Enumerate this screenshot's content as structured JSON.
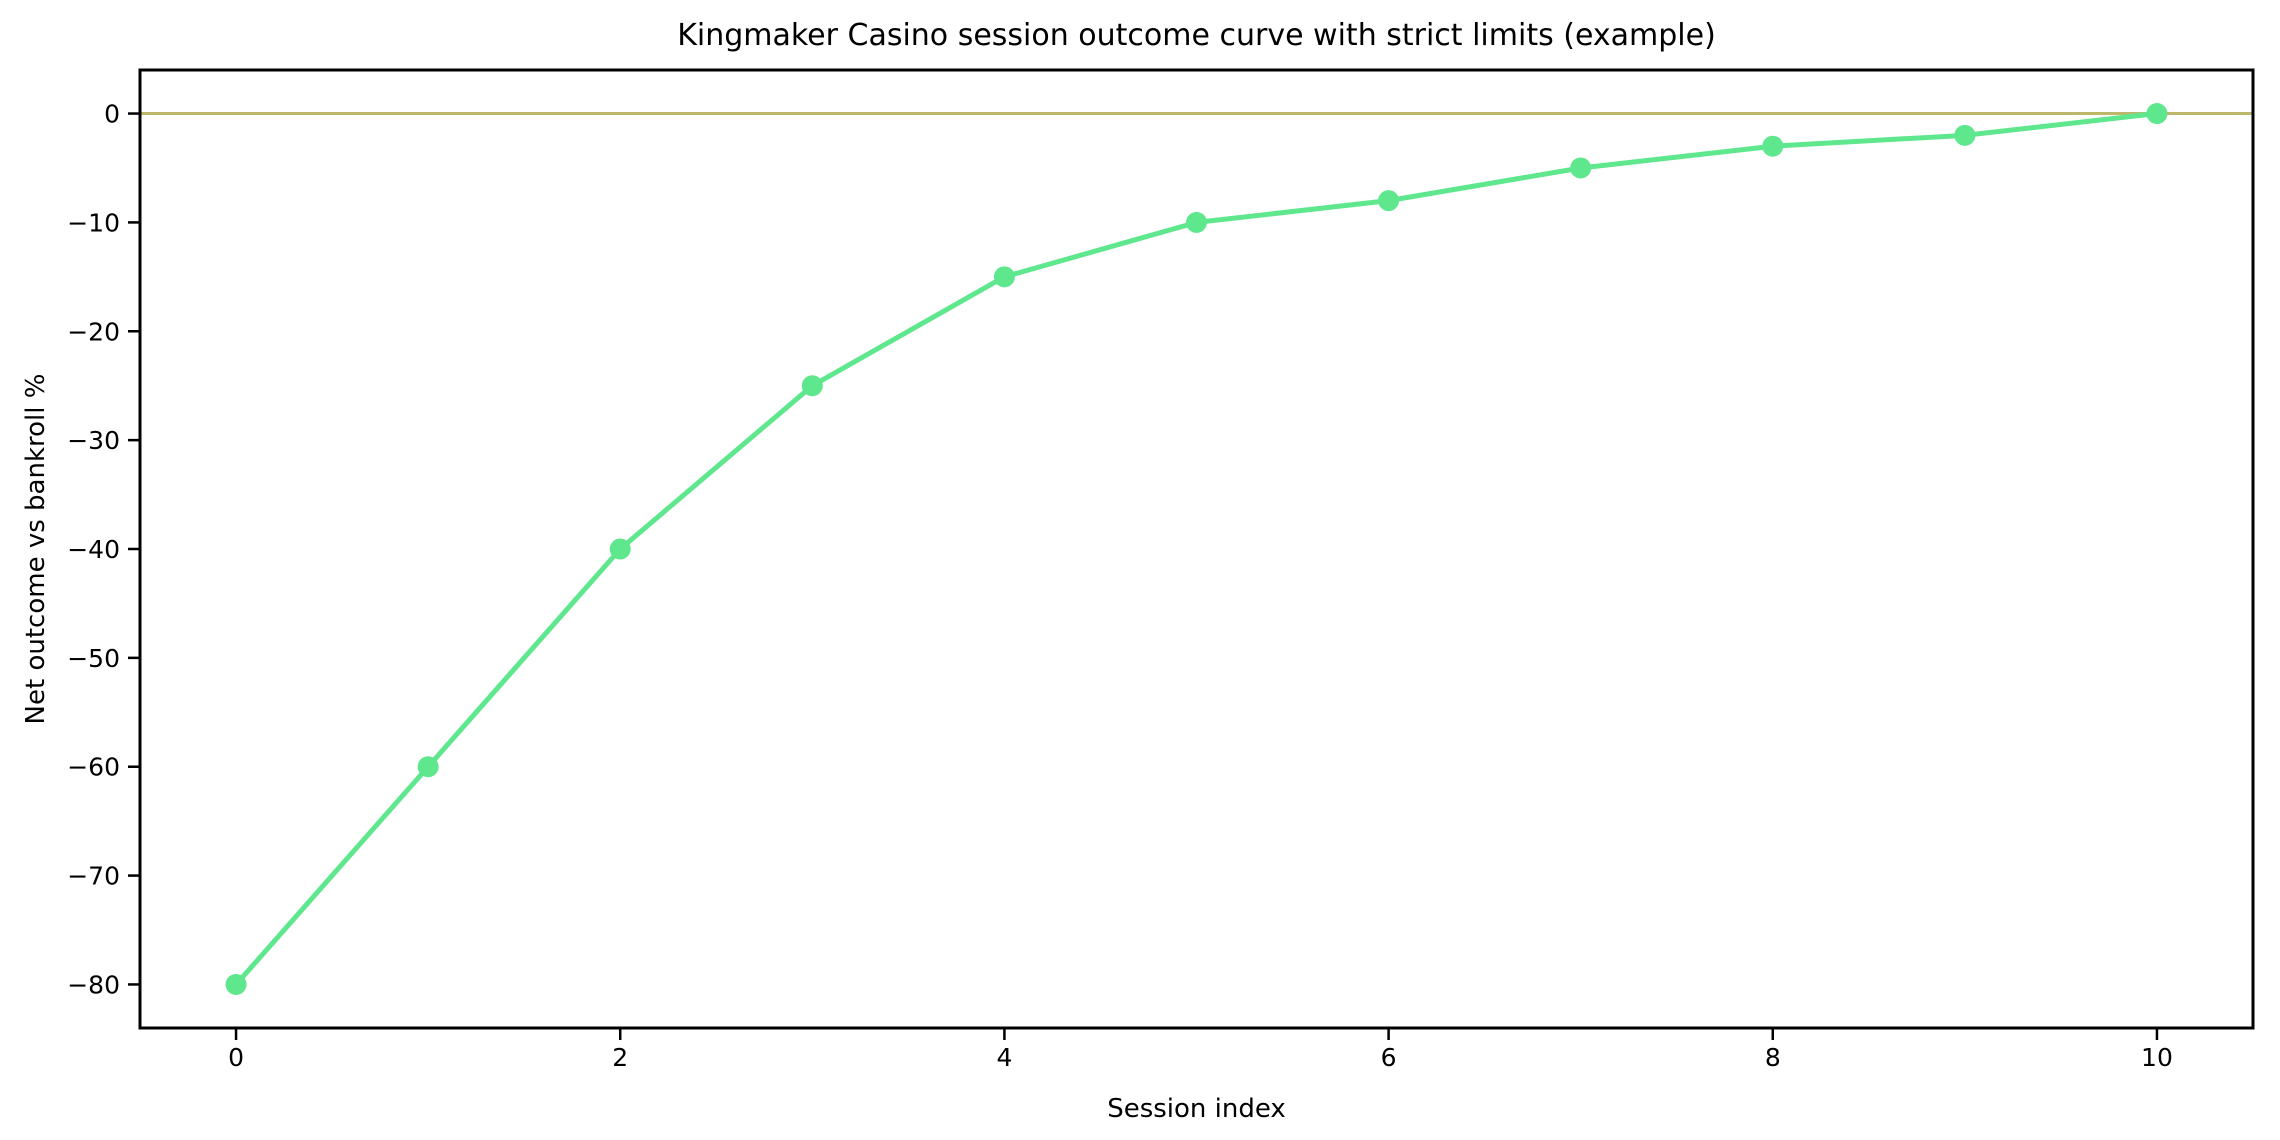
{
  "chart_data": {
    "type": "line",
    "title": "Kingmaker Casino session outcome curve with strict limits (example)",
    "xlabel": "Session index",
    "ylabel": "Net outcome vs bankroll %",
    "x": [
      0,
      1,
      2,
      3,
      4,
      5,
      6,
      7,
      8,
      9,
      10
    ],
    "y": [
      -80,
      -60,
      -40,
      -25,
      -15,
      -10,
      -8,
      -5,
      -3,
      -2,
      0
    ],
    "xlim": [
      -0.5,
      10.5
    ],
    "ylim": [
      -84,
      4
    ],
    "x_ticks": {
      "values": [
        0,
        2,
        4,
        6,
        8,
        10
      ],
      "labels": [
        "0",
        "2",
        "4",
        "6",
        "8",
        "10"
      ]
    },
    "y_ticks": {
      "values": [
        0,
        -10,
        -20,
        -30,
        -40,
        -50,
        -60,
        -70,
        -80
      ],
      "labels": [
        "0",
        "−10",
        "−20",
        "−30",
        "−40",
        "−50",
        "−60",
        "−70",
        "−80"
      ]
    },
    "line_color": "#5FE78E",
    "marker": "circle",
    "reference_line": {
      "y": 0,
      "color": "#BDB76B"
    },
    "grid": false,
    "legend": "none",
    "frame": "box"
  }
}
